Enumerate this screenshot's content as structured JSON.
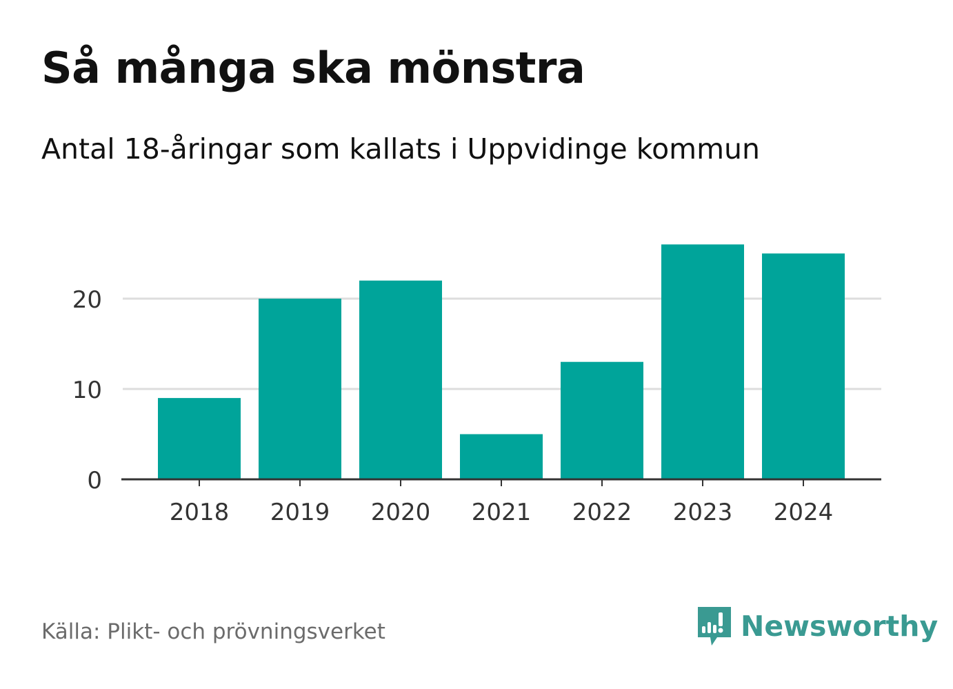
{
  "title": "Så många ska mönstra",
  "subtitle": "Antal 18-åringar som kallats i Uppvidinge kommun",
  "source": "Källa: Plikt- och prövningsverket",
  "brand": "Newsworthy",
  "colors": {
    "bar": "#00a49a",
    "grid": "#dddddd",
    "axis": "#333333",
    "brand": "#3a9a92",
    "source_text": "#6b6b6b"
  },
  "chart_data": {
    "type": "bar",
    "title": "Så många ska mönstra",
    "subtitle": "Antal 18-åringar som kallats i Uppvidinge kommun",
    "xlabel": "",
    "ylabel": "",
    "categories": [
      "2018",
      "2019",
      "2020",
      "2021",
      "2022",
      "2023",
      "2024"
    ],
    "values": [
      9,
      20,
      22,
      5,
      13,
      26,
      25
    ],
    "ylim": [
      0,
      30
    ],
    "yticks": [
      0,
      10,
      20
    ],
    "grid": true
  }
}
